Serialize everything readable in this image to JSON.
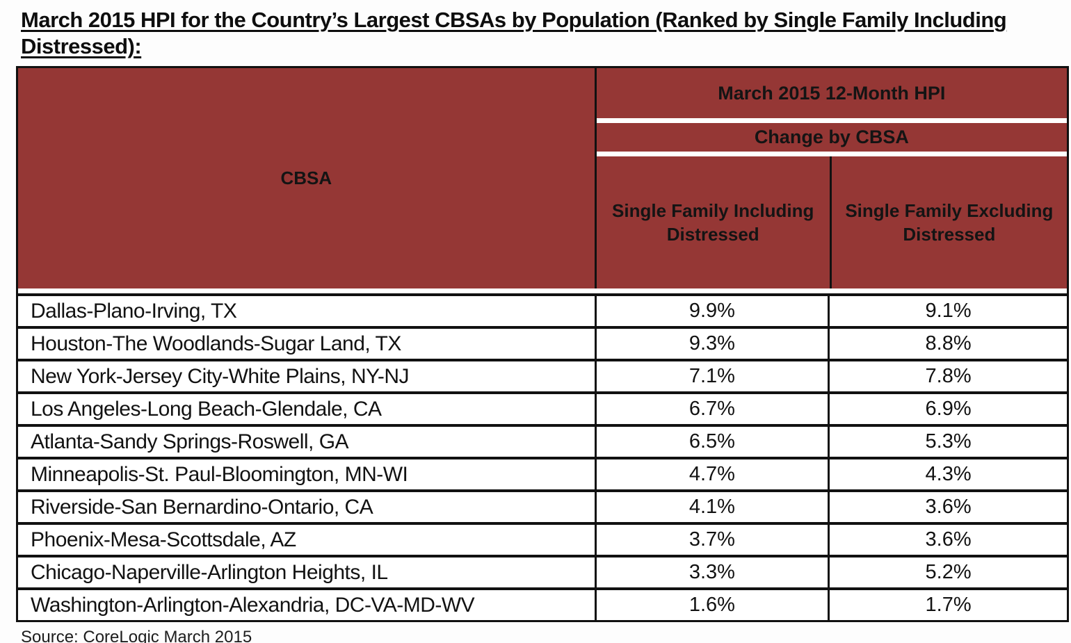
{
  "page": {
    "title": "March 2015 HPI for the Country’s Largest CBSAs by Population (Ranked by Single Family Including Distressed):",
    "source": "Source: CoreLogic March 2015"
  },
  "colors": {
    "header_bg": "#953735",
    "border": "#111111",
    "row_bg": "#ffffff"
  },
  "table": {
    "cbsa_header": "CBSA",
    "group_header": "March 2015 12-Month HPI",
    "subgroup_header": "Change by CBSA",
    "col_including": "Single Family Including Distressed",
    "col_excluding": "Single Family Excluding Distressed",
    "rows": [
      {
        "cbsa": "Dallas-Plano-Irving, TX",
        "including": "9.9%",
        "excluding": "9.1%"
      },
      {
        "cbsa": "Houston-The Woodlands-Sugar Land, TX",
        "including": "9.3%",
        "excluding": "8.8%"
      },
      {
        "cbsa": "New York-Jersey City-White Plains, NY-NJ",
        "including": "7.1%",
        "excluding": "7.8%"
      },
      {
        "cbsa": "Los Angeles-Long Beach-Glendale, CA",
        "including": "6.7%",
        "excluding": "6.9%"
      },
      {
        "cbsa": "Atlanta-Sandy Springs-Roswell, GA",
        "including": "6.5%",
        "excluding": "5.3%"
      },
      {
        "cbsa": "Minneapolis-St. Paul-Bloomington, MN-WI",
        "including": "4.7%",
        "excluding": "4.3%"
      },
      {
        "cbsa": "Riverside-San Bernardino-Ontario, CA",
        "including": "4.1%",
        "excluding": "3.6%"
      },
      {
        "cbsa": "Phoenix-Mesa-Scottsdale, AZ",
        "including": "3.7%",
        "excluding": "3.6%"
      },
      {
        "cbsa": "Chicago-Naperville-Arlington Heights, IL",
        "including": "3.3%",
        "excluding": "5.2%"
      },
      {
        "cbsa": "Washington-Arlington-Alexandria, DC-VA-MD-WV",
        "including": "1.6%",
        "excluding": "1.7%"
      }
    ]
  },
  "chart_data": {
    "type": "table",
    "title": "March 2015 HPI for the Country’s Largest CBSAs by Population (Ranked by Single Family Including Distressed)",
    "columns": [
      "CBSA",
      "Single Family Including Distressed",
      "Single Family Excluding Distressed"
    ],
    "rows": [
      [
        "Dallas-Plano-Irving, TX",
        9.9,
        9.1
      ],
      [
        "Houston-The Woodlands-Sugar Land, TX",
        9.3,
        8.8
      ],
      [
        "New York-Jersey City-White Plains, NY-NJ",
        7.1,
        7.8
      ],
      [
        "Los Angeles-Long Beach-Glendale, CA",
        6.7,
        6.9
      ],
      [
        "Atlanta-Sandy Springs-Roswell, GA",
        6.5,
        5.3
      ],
      [
        "Minneapolis-St. Paul-Bloomington, MN-WI",
        4.7,
        4.3
      ],
      [
        "Riverside-San Bernardino-Ontario, CA",
        4.1,
        3.6
      ],
      [
        "Phoenix-Mesa-Scottsdale, AZ",
        3.7,
        3.6
      ],
      [
        "Chicago-Naperville-Arlington Heights, IL",
        3.3,
        5.2
      ],
      [
        "Washington-Arlington-Alexandria, DC-VA-MD-WV",
        1.6,
        1.7
      ]
    ],
    "units": "percent",
    "source": "CoreLogic March 2015"
  }
}
